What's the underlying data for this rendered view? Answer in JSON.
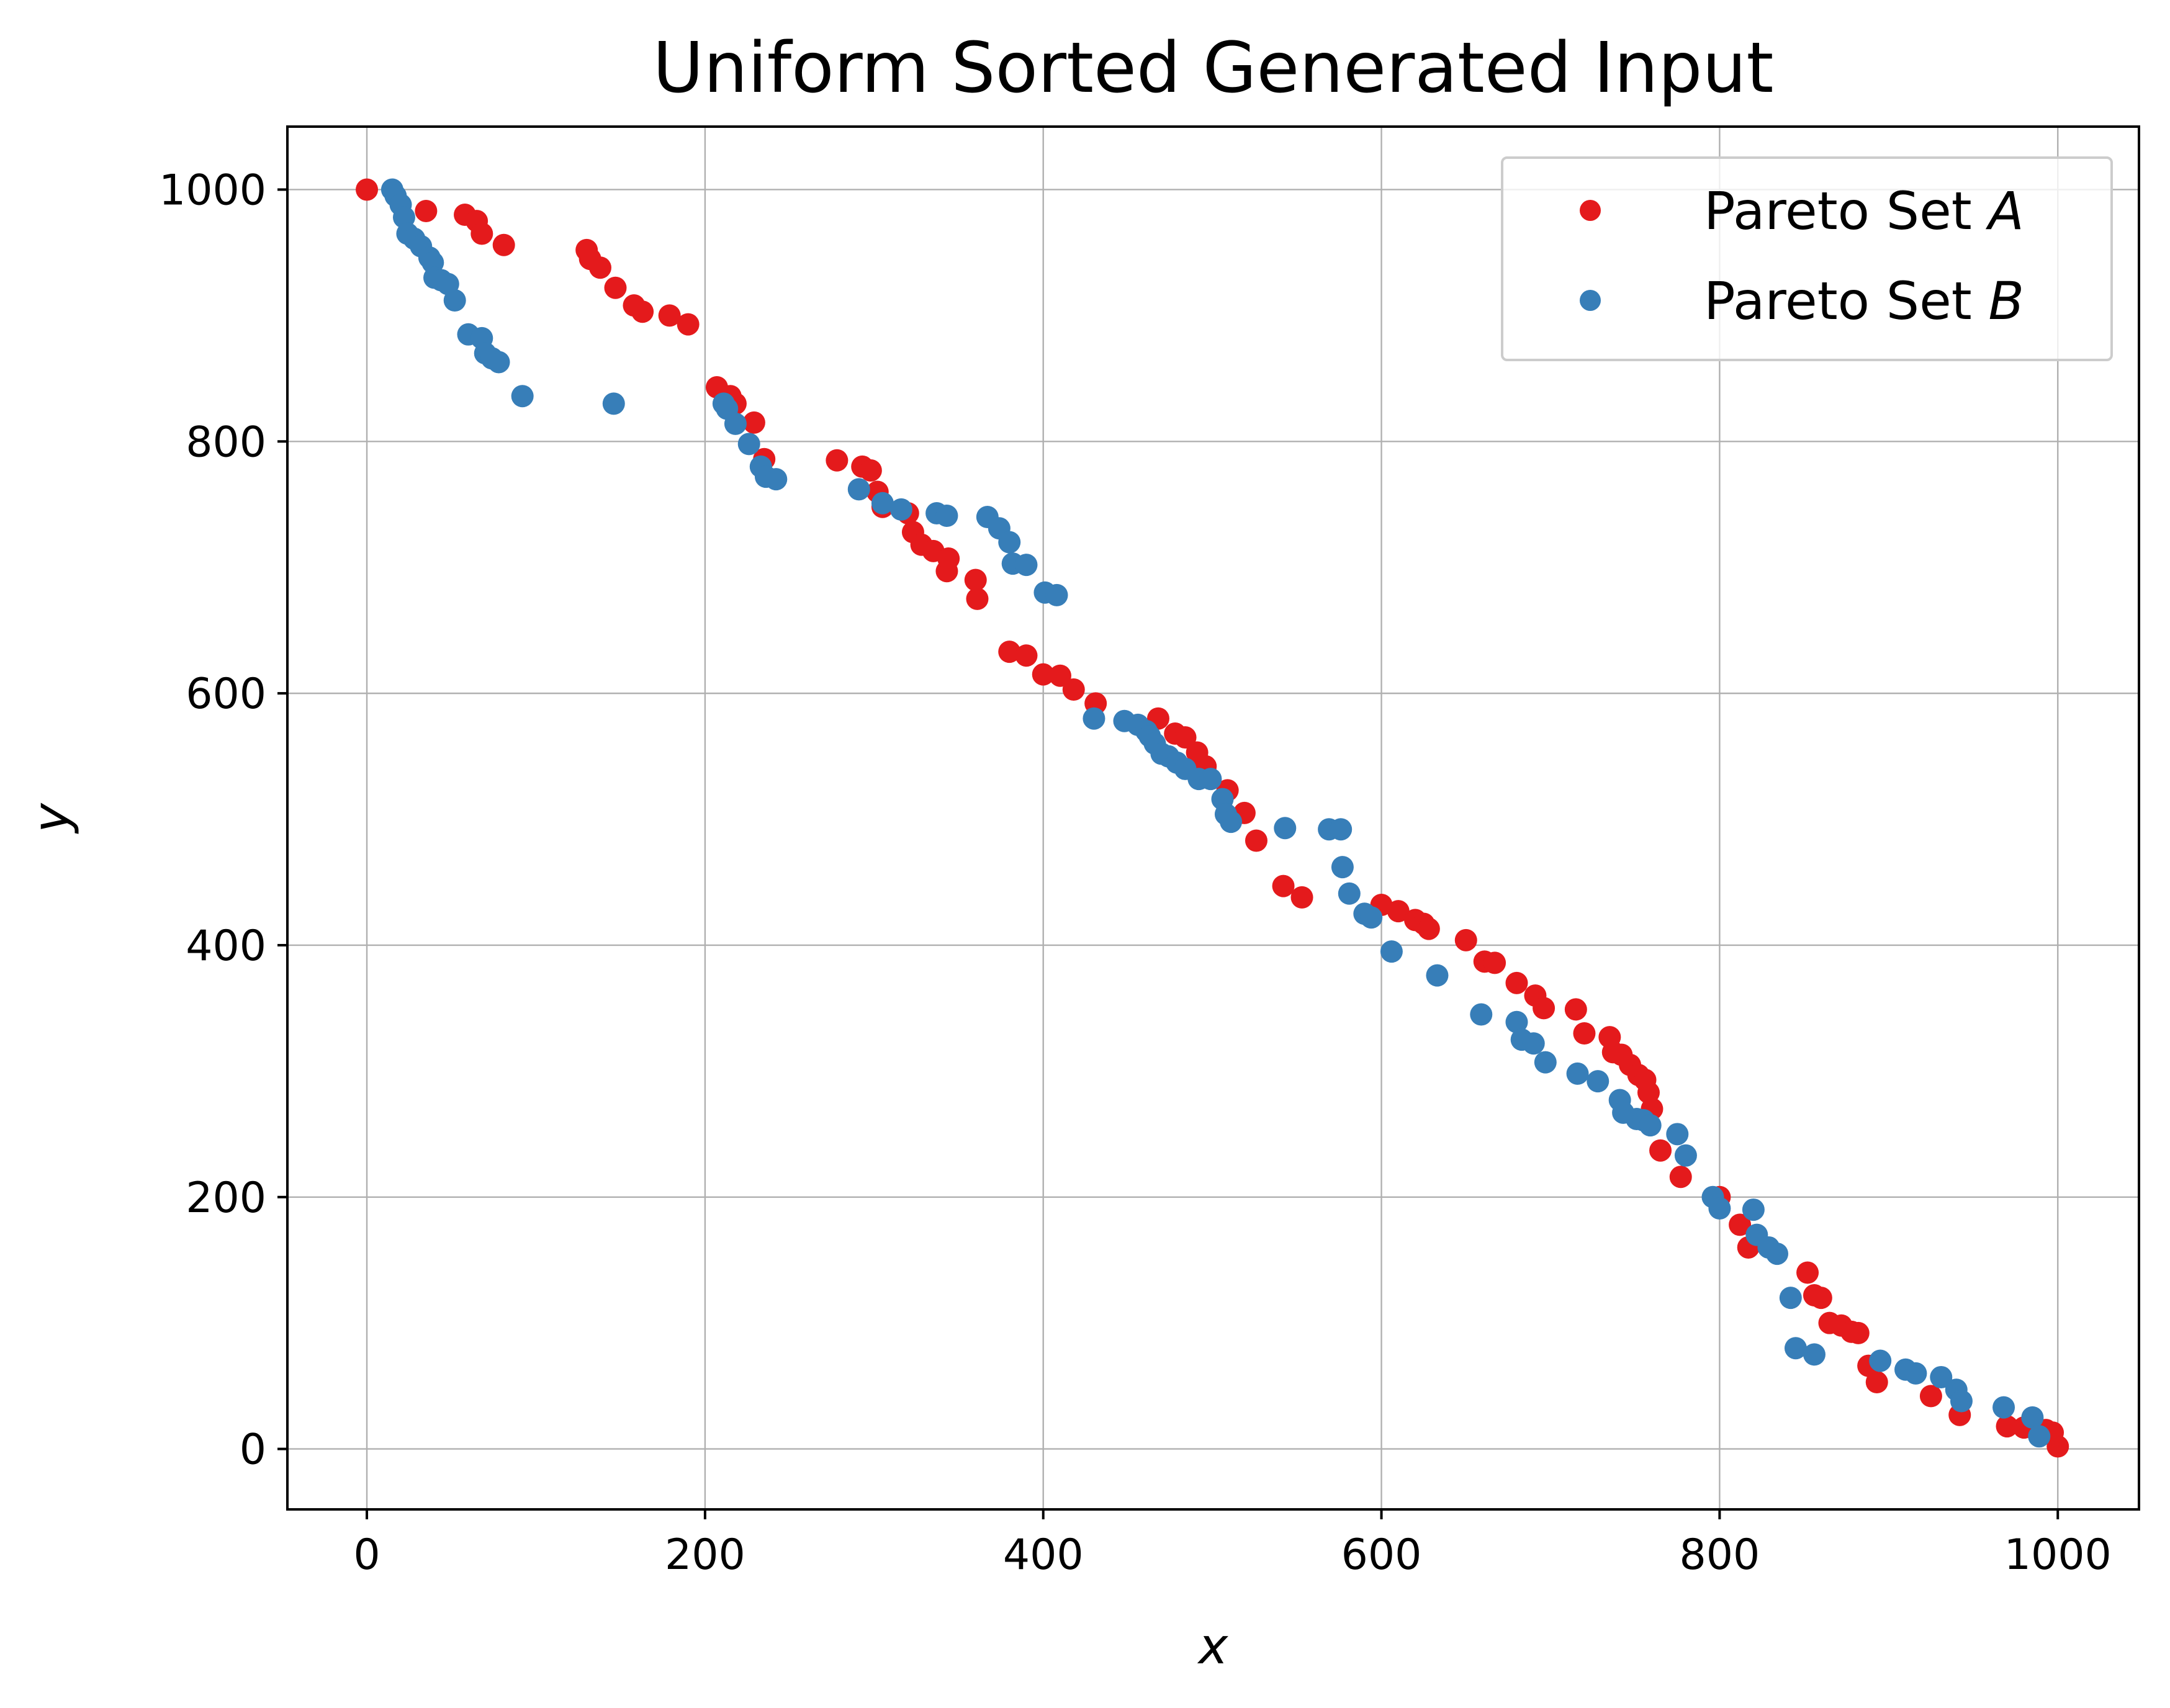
{
  "chart_data": {
    "type": "scatter",
    "title": "Uniform Sorted Generated Input",
    "xlabel": "x",
    "ylabel": "y",
    "xlim": [
      -47,
      1048
    ],
    "ylim": [
      -48,
      1050
    ],
    "xticks": [
      0,
      200,
      400,
      600,
      800,
      1000
    ],
    "yticks": [
      0,
      200,
      400,
      600,
      800,
      1000
    ],
    "xtick_labels": [
      "0",
      "200",
      "400",
      "600",
      "800",
      "1000"
    ],
    "ytick_labels": [
      "0",
      "200",
      "400",
      "600",
      "800",
      "1000"
    ],
    "grid": true,
    "legend_position": "top-right",
    "series": [
      {
        "name": "Pareto Set A",
        "legend_prefix": "Pareto Set ",
        "legend_symbol": "A",
        "color": "#e41a1c",
        "points": [
          [
            0,
            1000
          ],
          [
            35,
            983
          ],
          [
            58,
            980
          ],
          [
            65,
            975
          ],
          [
            68,
            965
          ],
          [
            81,
            956
          ],
          [
            130,
            952
          ],
          [
            132,
            945
          ],
          [
            138,
            938
          ],
          [
            147,
            922
          ],
          [
            158,
            908
          ],
          [
            163,
            903
          ],
          [
            179,
            900
          ],
          [
            190,
            893
          ],
          [
            207,
            843
          ],
          [
            215,
            836
          ],
          [
            218,
            830
          ],
          [
            229,
            815
          ],
          [
            235,
            786
          ],
          [
            278,
            785
          ],
          [
            293,
            780
          ],
          [
            298,
            777
          ],
          [
            302,
            760
          ],
          [
            305,
            748
          ],
          [
            320,
            743
          ],
          [
            323,
            728
          ],
          [
            328,
            718
          ],
          [
            335,
            713
          ],
          [
            343,
            697
          ],
          [
            344,
            707
          ],
          [
            360,
            690
          ],
          [
            361,
            675
          ],
          [
            380,
            633
          ],
          [
            390,
            630
          ],
          [
            400,
            615
          ],
          [
            410,
            614
          ],
          [
            418,
            603
          ],
          [
            431,
            592
          ],
          [
            468,
            580
          ],
          [
            478,
            568
          ],
          [
            484,
            565
          ],
          [
            491,
            553
          ],
          [
            496,
            542
          ],
          [
            509,
            523
          ],
          [
            519,
            505
          ],
          [
            526,
            483
          ],
          [
            542,
            447
          ],
          [
            553,
            438
          ],
          [
            600,
            432
          ],
          [
            610,
            427
          ],
          [
            620,
            420
          ],
          [
            625,
            417
          ],
          [
            628,
            413
          ],
          [
            650,
            404
          ],
          [
            661,
            387
          ],
          [
            667,
            386
          ],
          [
            680,
            370
          ],
          [
            691,
            360
          ],
          [
            696,
            350
          ],
          [
            715,
            349
          ],
          [
            720,
            330
          ],
          [
            735,
            327
          ],
          [
            737,
            315
          ],
          [
            742,
            313
          ],
          [
            747,
            305
          ],
          [
            752,
            297
          ],
          [
            756,
            293
          ],
          [
            758,
            283
          ],
          [
            760,
            270
          ],
          [
            765,
            237
          ],
          [
            777,
            216
          ],
          [
            800,
            200
          ],
          [
            812,
            178
          ],
          [
            817,
            160
          ],
          [
            852,
            140
          ],
          [
            856,
            122
          ],
          [
            860,
            120
          ],
          [
            865,
            100
          ],
          [
            872,
            98
          ],
          [
            878,
            93
          ],
          [
            882,
            92
          ],
          [
            888,
            66
          ],
          [
            893,
            53
          ],
          [
            925,
            42
          ],
          [
            942,
            27
          ],
          [
            970,
            18
          ],
          [
            980,
            17
          ],
          [
            993,
            15
          ],
          [
            997,
            13
          ],
          [
            1000,
            2
          ]
        ]
      },
      {
        "name": "Pareto Set B",
        "legend_prefix": "Pareto Set ",
        "legend_symbol": "B",
        "color": "#377eb8",
        "points": [
          [
            15,
            1000
          ],
          [
            17,
            995
          ],
          [
            20,
            988
          ],
          [
            22,
            978
          ],
          [
            24,
            965
          ],
          [
            28,
            961
          ],
          [
            32,
            955
          ],
          [
            37,
            946
          ],
          [
            39,
            942
          ],
          [
            40,
            930
          ],
          [
            44,
            928
          ],
          [
            48,
            925
          ],
          [
            52,
            912
          ],
          [
            60,
            885
          ],
          [
            68,
            882
          ],
          [
            70,
            870
          ],
          [
            74,
            866
          ],
          [
            78,
            863
          ],
          [
            92,
            836
          ],
          [
            146,
            830
          ],
          [
            211,
            830
          ],
          [
            213,
            826
          ],
          [
            218,
            814
          ],
          [
            226,
            798
          ],
          [
            233,
            780
          ],
          [
            236,
            772
          ],
          [
            242,
            770
          ],
          [
            291,
            762
          ],
          [
            305,
            751
          ],
          [
            316,
            746
          ],
          [
            337,
            743
          ],
          [
            343,
            741
          ],
          [
            367,
            740
          ],
          [
            374,
            731
          ],
          [
            380,
            720
          ],
          [
            382,
            703
          ],
          [
            390,
            702
          ],
          [
            401,
            680
          ],
          [
            408,
            678
          ],
          [
            430,
            580
          ],
          [
            448,
            578
          ],
          [
            456,
            575
          ],
          [
            461,
            570
          ],
          [
            463,
            566
          ],
          [
            466,
            560
          ],
          [
            470,
            552
          ],
          [
            474,
            550
          ],
          [
            479,
            545
          ],
          [
            484,
            540
          ],
          [
            492,
            532
          ],
          [
            499,
            532
          ],
          [
            506,
            516
          ],
          [
            508,
            504
          ],
          [
            511,
            498
          ],
          [
            543,
            493
          ],
          [
            569,
            492
          ],
          [
            576,
            492
          ],
          [
            577,
            462
          ],
          [
            581,
            441
          ],
          [
            590,
            425
          ],
          [
            594,
            422
          ],
          [
            606,
            395
          ],
          [
            633,
            376
          ],
          [
            659,
            345
          ],
          [
            680,
            339
          ],
          [
            683,
            325
          ],
          [
            690,
            322
          ],
          [
            697,
            307
          ],
          [
            716,
            298
          ],
          [
            728,
            292
          ],
          [
            741,
            277
          ],
          [
            743,
            267
          ],
          [
            751,
            262
          ],
          [
            755,
            261
          ],
          [
            759,
            257
          ],
          [
            775,
            250
          ],
          [
            780,
            233
          ],
          [
            796,
            200
          ],
          [
            800,
            191
          ],
          [
            820,
            190
          ],
          [
            822,
            170
          ],
          [
            829,
            160
          ],
          [
            834,
            155
          ],
          [
            842,
            120
          ],
          [
            845,
            80
          ],
          [
            856,
            75
          ],
          [
            895,
            70
          ],
          [
            910,
            63
          ],
          [
            916,
            60
          ],
          [
            931,
            57
          ],
          [
            940,
            47
          ],
          [
            943,
            38
          ],
          [
            968,
            33
          ],
          [
            985,
            25
          ],
          [
            989,
            10
          ]
        ]
      }
    ]
  }
}
